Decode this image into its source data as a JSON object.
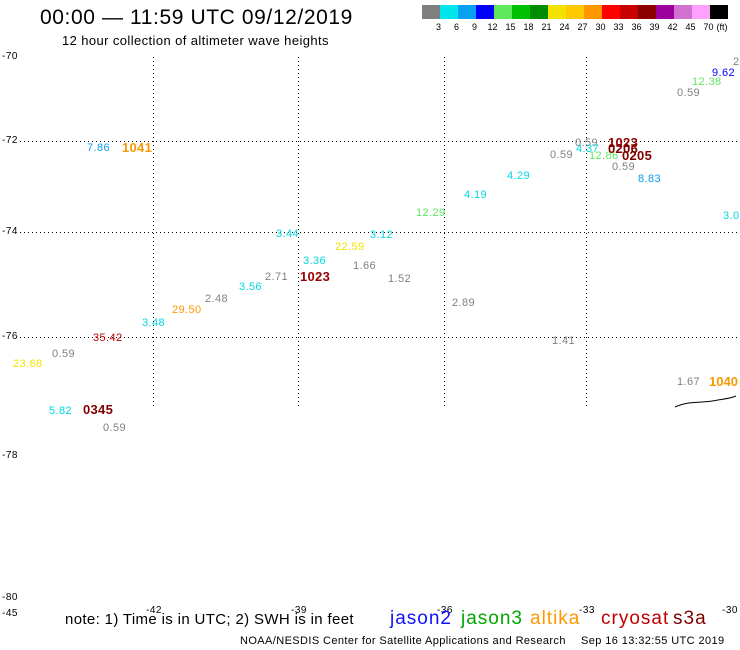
{
  "header": {
    "title": "00:00 — 11:59 UTC 09/12/2019",
    "subtitle": "12 hour collection of altimeter wave heights"
  },
  "color_scale": {
    "swatches": [
      {
        "color": "#808080"
      },
      {
        "color": "#00e5ee"
      },
      {
        "color": "#0aa0f0"
      },
      {
        "color": "#0000ff"
      },
      {
        "color": "#5ee85e"
      },
      {
        "color": "#00c000"
      },
      {
        "color": "#008c00"
      },
      {
        "color": "#f2e200"
      },
      {
        "color": "#ffc800"
      },
      {
        "color": "#ff9800"
      },
      {
        "color": "#ff0000"
      },
      {
        "color": "#c80000"
      },
      {
        "color": "#8c0000"
      },
      {
        "color": "#9c009c"
      },
      {
        "color": "#d070d0"
      },
      {
        "color": "#ffa0ff"
      },
      {
        "color": "#000000"
      }
    ],
    "labels": [
      "3",
      "6",
      "9",
      "12",
      "15",
      "18",
      "21",
      "24",
      "27",
      "30",
      "33",
      "36",
      "39",
      "42",
      "45",
      "70"
    ],
    "unit": "(ft)"
  },
  "axes": {
    "latitude_labels": [
      "-70",
      "-72",
      "-74",
      "-76",
      "-78",
      "-80"
    ],
    "longitude_labels": [
      "-45",
      "-42",
      "-39",
      "-36",
      "-33",
      "-30"
    ]
  },
  "observations": [
    {
      "value": "2",
      "color": "#808080"
    },
    {
      "value": "9.62",
      "color": "#0000ff"
    },
    {
      "value": "12.38",
      "color": "#5ee85e"
    },
    {
      "value": "0.59",
      "color": "#808080"
    },
    {
      "value": "0.59",
      "color": "#808080"
    },
    {
      "value": "4.37",
      "color": "#00d8e0"
    },
    {
      "value": "12.86",
      "color": "#5ee85e"
    },
    {
      "value": "0.59",
      "color": "#808080"
    },
    {
      "value": "0.59",
      "color": "#808080"
    },
    {
      "value": "8.83",
      "color": "#0a9cf0"
    },
    {
      "value": "3.0",
      "color": "#00d8e0"
    },
    {
      "value": "7.86",
      "color": "#0a9cf0"
    },
    {
      "value": "4.29",
      "color": "#00d8e0"
    },
    {
      "value": "4.19",
      "color": "#00d8e0"
    },
    {
      "value": "12.29",
      "color": "#5ee85e"
    },
    {
      "value": "3.44",
      "color": "#00d8e0"
    },
    {
      "value": "3.12",
      "color": "#00d8e0"
    },
    {
      "value": "22.59",
      "color": "#f2e200"
    },
    {
      "value": "3.36",
      "color": "#00d8e0"
    },
    {
      "value": "1.66",
      "color": "#808080"
    },
    {
      "value": "2.71",
      "color": "#808080"
    },
    {
      "value": "1.52",
      "color": "#808080"
    },
    {
      "value": "3.56",
      "color": "#00d8e0"
    },
    {
      "value": "2.48",
      "color": "#808080"
    },
    {
      "value": "2.89",
      "color": "#808080"
    },
    {
      "value": "29.50",
      "color": "#ff9800"
    },
    {
      "value": "3.48",
      "color": "#00d8e0"
    },
    {
      "value": "35.42",
      "color": "#c00000"
    },
    {
      "value": "1.41",
      "color": "#808080"
    },
    {
      "value": "0.59",
      "color": "#808080"
    },
    {
      "value": "23.68",
      "color": "#f2e200"
    },
    {
      "value": "1.67",
      "color": "#808080"
    },
    {
      "value": "5.82",
      "color": "#00d8e0"
    },
    {
      "value": "0.59",
      "color": "#808080"
    }
  ],
  "pass_times": [
    {
      "time": "1041",
      "color": "#f59a00"
    },
    {
      "time": "1023",
      "color": "#990000"
    },
    {
      "time": "0206",
      "color": "#800000"
    },
    {
      "time": "0205",
      "color": "#800000"
    },
    {
      "time": "1023",
      "color": "#990000"
    },
    {
      "time": "1040",
      "color": "#f59a00"
    },
    {
      "time": "0345",
      "color": "#800000"
    }
  ],
  "footer": {
    "note": "note: 1) Time is in UTC; 2) SWH is in feet",
    "satellites": [
      {
        "name": "jason2",
        "color": "#1010ff"
      },
      {
        "name": "jason3",
        "color": "#00a800"
      },
      {
        "name": "altika",
        "color": "#ff9800"
      },
      {
        "name": "cryosat",
        "color": "#c00000"
      },
      {
        "name": "s3a",
        "color": "#800000"
      }
    ],
    "credit": "NOAA/NESDIS Center for Satellite Applications and Research",
    "timestamp": "Sep 16 13:32:55 UTC 2019"
  }
}
